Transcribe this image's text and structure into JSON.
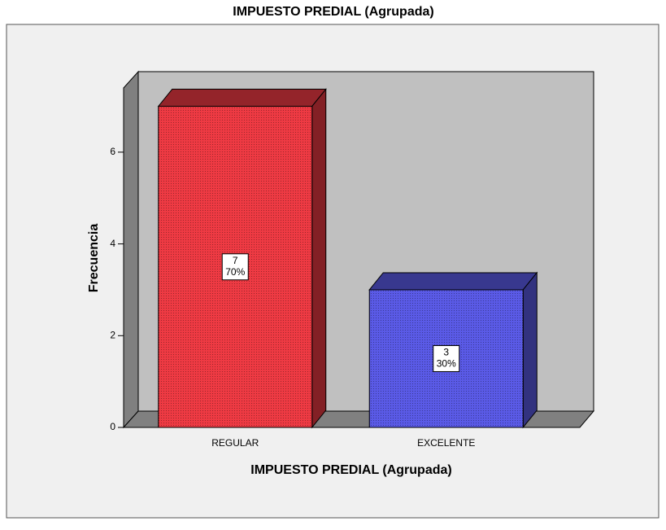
{
  "chart_data": {
    "type": "bar3d",
    "title": "IMPUESTO PREDIAL  (Agrupada)",
    "x_label": "IMPUESTO PREDIAL  (Agrupada)",
    "y_label": "Frecuencia",
    "categories": [
      "REGULAR",
      "EXCELENTE"
    ],
    "values": [
      7,
      3
    ],
    "percent_values": [
      70,
      30
    ],
    "percent_labels": [
      "70%",
      "30%"
    ],
    "colors": [
      "#ee3a43",
      "#5a5ae6"
    ],
    "ylim": [
      0,
      7.4
    ],
    "yticks": [
      0,
      2,
      4,
      6
    ]
  }
}
